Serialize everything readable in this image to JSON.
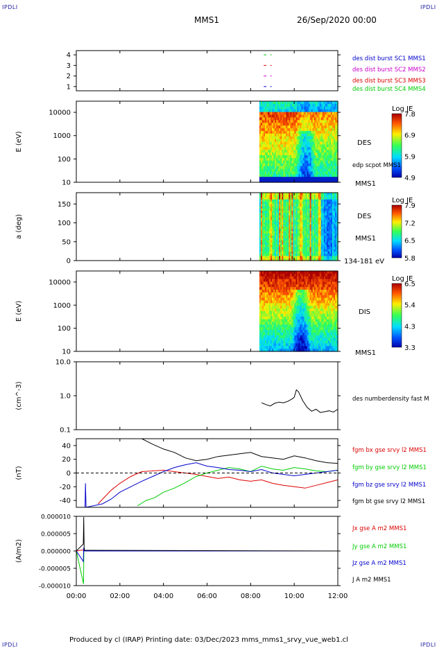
{
  "header": {
    "left_tag": "IPDLI",
    "right_tag": "IPDLI",
    "title": "MMS1",
    "datetime": "26/Sep/2020 00:00"
  },
  "footer": {
    "text": "Produced by cl (IRAP)   Printing date: 03/Dec/2023   mms_mms1_srvy_vue_web1.cl",
    "left_tag": "IPDLI",
    "right_tag": "IPDLI"
  },
  "colors": {
    "blue": "#0000cc",
    "magenta": "#cc00cc",
    "red": "#dd0000",
    "green": "#00cc00",
    "black": "#000000"
  },
  "x_axis": {
    "ticks": [
      "00:00",
      "02:00",
      "04:00",
      "06:00",
      "08:00",
      "10:00",
      "12:00"
    ],
    "range_hours": [
      0,
      12
    ]
  },
  "chart_data": [
    {
      "type": "scatter",
      "name": "burst availability",
      "yticks": [
        "1",
        "2",
        "3",
        "4"
      ],
      "ylim": [
        0.6,
        4.4
      ],
      "labels": [
        "des dist burst SC1 MMS1",
        "des dist burst SC2 MMS2",
        "des dist burst SC3 MMS3",
        "des dist burst SC4 MMS4"
      ],
      "label_colors": [
        "#0000cc",
        "#cc00cc",
        "#dd0000",
        "#00cc00"
      ],
      "marks": [
        {
          "x": [
            8.6,
            8.9
          ],
          "y": 4,
          "color": "#00cc00"
        },
        {
          "x": [
            8.6,
            8.9
          ],
          "y": 3,
          "color": "#dd0000"
        },
        {
          "x": [
            8.6,
            8.9
          ],
          "y": 2,
          "color": "#cc00cc"
        },
        {
          "x": [
            8.6,
            8.9
          ],
          "y": 1,
          "color": "#0000cc"
        }
      ]
    },
    {
      "type": "heatmap",
      "name": "DES energy spectrogram",
      "ylabel": "E (eV)",
      "yscale": "log",
      "ylim": [
        10,
        30000
      ],
      "yticks": [
        "10",
        "100",
        "1000",
        "10000"
      ],
      "xrange_hours": [
        8.4,
        12
      ],
      "labels": [
        "DES",
        "edp scpot MMS1",
        "MMS1"
      ],
      "colorbar": {
        "title": "Log JE",
        "ticks": [
          "7.8",
          "6.9",
          "5.9",
          "4.9"
        ]
      }
    },
    {
      "type": "heatmap",
      "name": "DES pitch angle",
      "ylabel": "a (deg)",
      "ylim": [
        0,
        180
      ],
      "yticks": [
        "0",
        "50",
        "100",
        "150"
      ],
      "xrange_hours": [
        8.4,
        12
      ],
      "labels": [
        "DES",
        "MMS1",
        "134-181 eV"
      ],
      "colorbar": {
        "title": "Log JE",
        "ticks": [
          "7.9",
          "7.2",
          "6.5",
          "5.8"
        ]
      }
    },
    {
      "type": "heatmap",
      "name": "DIS energy spectrogram",
      "ylabel": "E (eV)",
      "yscale": "log",
      "ylim": [
        10,
        30000
      ],
      "yticks": [
        "10",
        "100",
        "1000",
        "10000"
      ],
      "xrange_hours": [
        8.4,
        12
      ],
      "labels": [
        "DIS",
        "MMS1"
      ],
      "colorbar": {
        "title": "Log JE",
        "ticks": [
          "6.5",
          "5.4",
          "4.3",
          "3.3"
        ]
      }
    },
    {
      "type": "line",
      "name": "des density",
      "ylabel": "(cm^-3)",
      "yscale": "log",
      "ylim": [
        0.1,
        10
      ],
      "yticks": [
        "0.1",
        "1.0",
        "10.0"
      ],
      "labels": [
        "des numberdensity fast M"
      ],
      "series": [
        {
          "name": "des numberdensity fast M",
          "color": "#000000",
          "x": [
            8.5,
            8.7,
            8.9,
            9.1,
            9.3,
            9.5,
            9.7,
            9.9,
            10.0,
            10.1,
            10.2,
            10.4,
            10.6,
            10.8,
            11.0,
            11.2,
            11.4,
            11.6,
            11.8,
            12.0
          ],
          "y": [
            0.62,
            0.55,
            0.5,
            0.6,
            0.65,
            0.62,
            0.68,
            0.8,
            0.9,
            1.5,
            1.3,
            0.7,
            0.45,
            0.35,
            0.4,
            0.32,
            0.34,
            0.36,
            0.33,
            0.4
          ]
        }
      ]
    },
    {
      "type": "line",
      "name": "fgm magnetic field",
      "ylabel": "(nT)",
      "ylim": [
        -50,
        50
      ],
      "yticks": [
        "-40",
        "-20",
        "0",
        "20",
        "40"
      ],
      "labels": [
        "fgm bx gse srvy l2 MMS1",
        "fgm by gse srvy l2 MMS1",
        "fgm bz gse srvy l2 MMS1",
        "fgm bt gse srvy l2 MMS1"
      ],
      "label_colors": [
        "#dd0000",
        "#00cc00",
        "#0000cc",
        "#000000"
      ],
      "series": [
        {
          "name": "fgm bx gse srvy l2 MMS1",
          "color": "#dd0000",
          "x": [
            1.0,
            1.3,
            1.6,
            2.0,
            2.5,
            3.0,
            3.5,
            4.0,
            4.5,
            5.0,
            5.5,
            6.0,
            6.5,
            7.0,
            7.5,
            8.0,
            8.5,
            9.0,
            9.5,
            10.0,
            10.5,
            11.0,
            11.5,
            12.0
          ],
          "y": [
            -45,
            -35,
            -25,
            -15,
            -5,
            2,
            3,
            4,
            2,
            0,
            -2,
            -5,
            -8,
            -6,
            -10,
            -12,
            -10,
            -15,
            -18,
            -20,
            -22,
            -18,
            -14,
            -10
          ]
        },
        {
          "name": "fgm by gse srvy l2 MMS1",
          "color": "#00cc00",
          "x": [
            2.8,
            3.2,
            3.6,
            4.0,
            4.5,
            5.0,
            5.5,
            6.0,
            6.5,
            7.0,
            7.5,
            8.0,
            8.5,
            9.0,
            9.5,
            10.0,
            10.5,
            11.0,
            11.5,
            12.0
          ],
          "y": [
            -48,
            -40,
            -36,
            -28,
            -22,
            -14,
            -5,
            0,
            4,
            8,
            6,
            2,
            10,
            6,
            4,
            8,
            6,
            3,
            2,
            4
          ]
        },
        {
          "name": "fgm bz gse srvy l2 MMS1",
          "color": "#0000cc",
          "x": [
            0.4,
            0.42,
            0.45,
            1.2,
            1.6,
            2.0,
            2.5,
            3.0,
            3.5,
            4.0,
            4.5,
            5.0,
            5.5,
            6.0,
            6.5,
            7.0,
            7.5,
            8.0,
            8.5,
            9.0,
            9.5,
            10.0,
            10.5,
            11.0,
            11.5,
            12.0
          ],
          "y": [
            -50,
            -15,
            -50,
            -45,
            -38,
            -28,
            -20,
            -12,
            -5,
            2,
            8,
            12,
            15,
            10,
            8,
            5,
            4,
            2,
            5,
            0,
            -2,
            -4,
            -2,
            0,
            2,
            4
          ]
        },
        {
          "name": "fgm bt gse srvy l2 MMS1",
          "color": "#000000",
          "x": [
            3.0,
            3.5,
            4.0,
            4.5,
            5.0,
            5.5,
            6.0,
            6.5,
            7.0,
            7.5,
            8.0,
            8.5,
            9.0,
            9.5,
            10.0,
            10.5,
            11.0,
            11.5,
            12.0
          ],
          "y": [
            50,
            42,
            35,
            30,
            22,
            18,
            20,
            24,
            26,
            28,
            30,
            24,
            22,
            20,
            25,
            22,
            18,
            15,
            14
          ]
        }
      ]
    },
    {
      "type": "line",
      "name": "current density",
      "ylabel": "(A/m2)",
      "ylim": [
        -1e-05,
        1e-05
      ],
      "yticks": [
        "-0.000010",
        "-0.000005",
        "0.000000",
        "0.000005",
        "0.000010"
      ],
      "labels": [
        "Jx gse A m2 MMS1",
        "Jy gse A m2 MMS1",
        "Jz gse A m2 MMS1",
        "J A m2 MMS1"
      ],
      "label_colors": [
        "#dd0000",
        "#00cc00",
        "#0000cc",
        "#000000"
      ],
      "series": [
        {
          "name": "Jx gse A m2 MMS1",
          "color": "#dd0000",
          "x": [
            0.0,
            0.3,
            0.35,
            12.0
          ],
          "y": [
            0,
            3e-07,
            0,
            0
          ]
        },
        {
          "name": "Jy gse A m2 MMS1",
          "color": "#00cc00",
          "x": [
            0.0,
            0.33,
            0.35,
            0.37,
            12.0
          ],
          "y": [
            0,
            -9.5e-06,
            1e-06,
            0,
            0
          ]
        },
        {
          "name": "Jz gse A m2 MMS1",
          "color": "#0000cc",
          "x": [
            0.0,
            0.32,
            0.34,
            0.36,
            12.0
          ],
          "y": [
            0,
            -3e-06,
            1e-06,
            0,
            0
          ]
        },
        {
          "name": "J A m2 MMS1",
          "color": "#000000",
          "x": [
            0.0,
            0.32,
            0.34,
            0.36,
            0.38,
            12.0
          ],
          "y": [
            0,
            2e-06,
            9.8e-06,
            1e-06,
            2e-07,
            0
          ]
        }
      ]
    }
  ]
}
